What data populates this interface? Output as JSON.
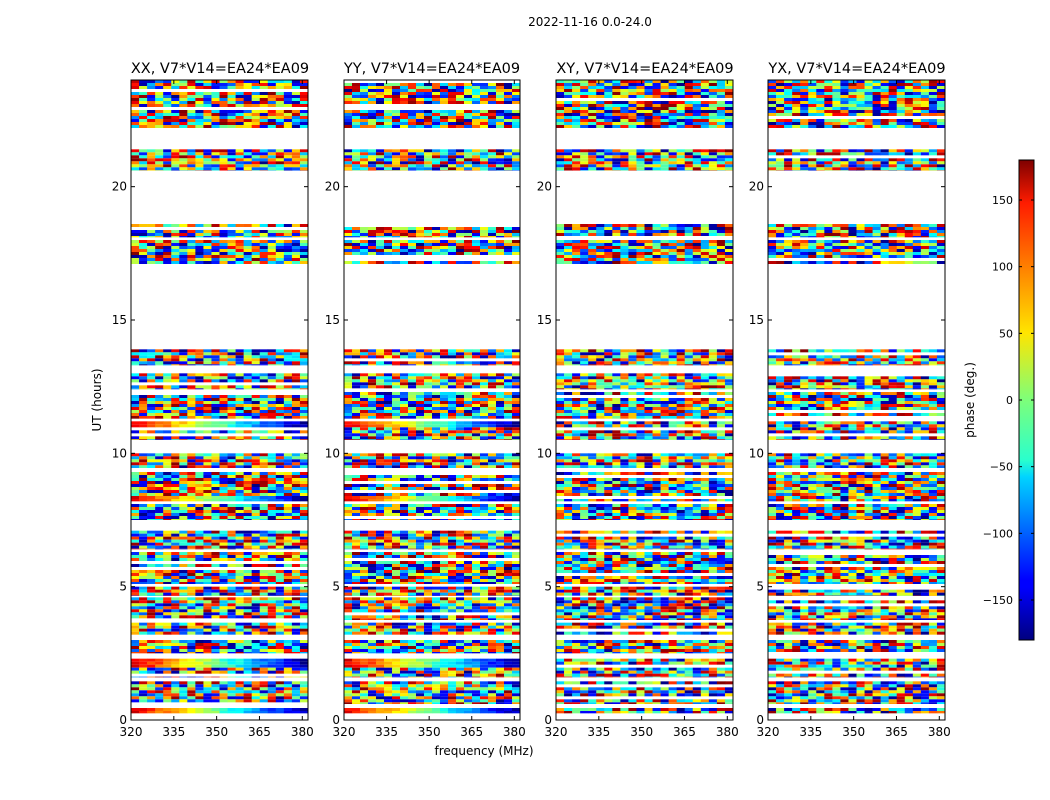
{
  "chart_data": {
    "type": "heatmap",
    "title": "2022-11-16 0.0-24.0",
    "xlabel": "frequency (MHz)",
    "ylabel": "UT (hours)",
    "xlim": [
      320,
      382
    ],
    "ylim": [
      0,
      24
    ],
    "xticks": [
      320,
      335,
      350,
      365,
      380
    ],
    "yticks": [
      0,
      5,
      10,
      15,
      20
    ],
    "panels": [
      {
        "title": "XX, V7*V14=EA24*EA09"
      },
      {
        "title": "YY, V7*V14=EA24*EA09"
      },
      {
        "title": "XY, V7*V14=EA24*EA09"
      },
      {
        "title": "YX, V7*V14=EA24*EA09"
      }
    ],
    "data_bands_hours": [
      [
        0.25,
        0.45
      ],
      [
        0.6,
        1.45
      ],
      [
        1.6,
        2.3
      ],
      [
        2.5,
        3.0
      ],
      [
        3.2,
        3.65
      ],
      [
        3.75,
        4.6
      ],
      [
        4.65,
        5.0
      ],
      [
        5.1,
        6.3
      ],
      [
        6.4,
        7.1
      ],
      [
        7.5,
        8.1
      ],
      [
        8.2,
        9.3
      ],
      [
        9.45,
        10.0
      ],
      [
        10.5,
        11.2
      ],
      [
        11.3,
        12.3
      ],
      [
        12.4,
        13.0
      ],
      [
        13.3,
        13.9
      ],
      [
        17.1,
        18.0
      ],
      [
        18.1,
        18.6
      ],
      [
        20.6,
        21.4
      ],
      [
        22.2,
        24.0
      ]
    ],
    "colorbar": {
      "label": "phase (deg.)",
      "range": [
        -180,
        180
      ],
      "ticks": [
        150,
        100,
        50,
        0,
        -50,
        -100,
        -150
      ],
      "tick_labels": [
        "150",
        "100",
        "50",
        "0",
        "−50",
        "−100",
        "−150"
      ],
      "colormap": "jet"
    }
  }
}
